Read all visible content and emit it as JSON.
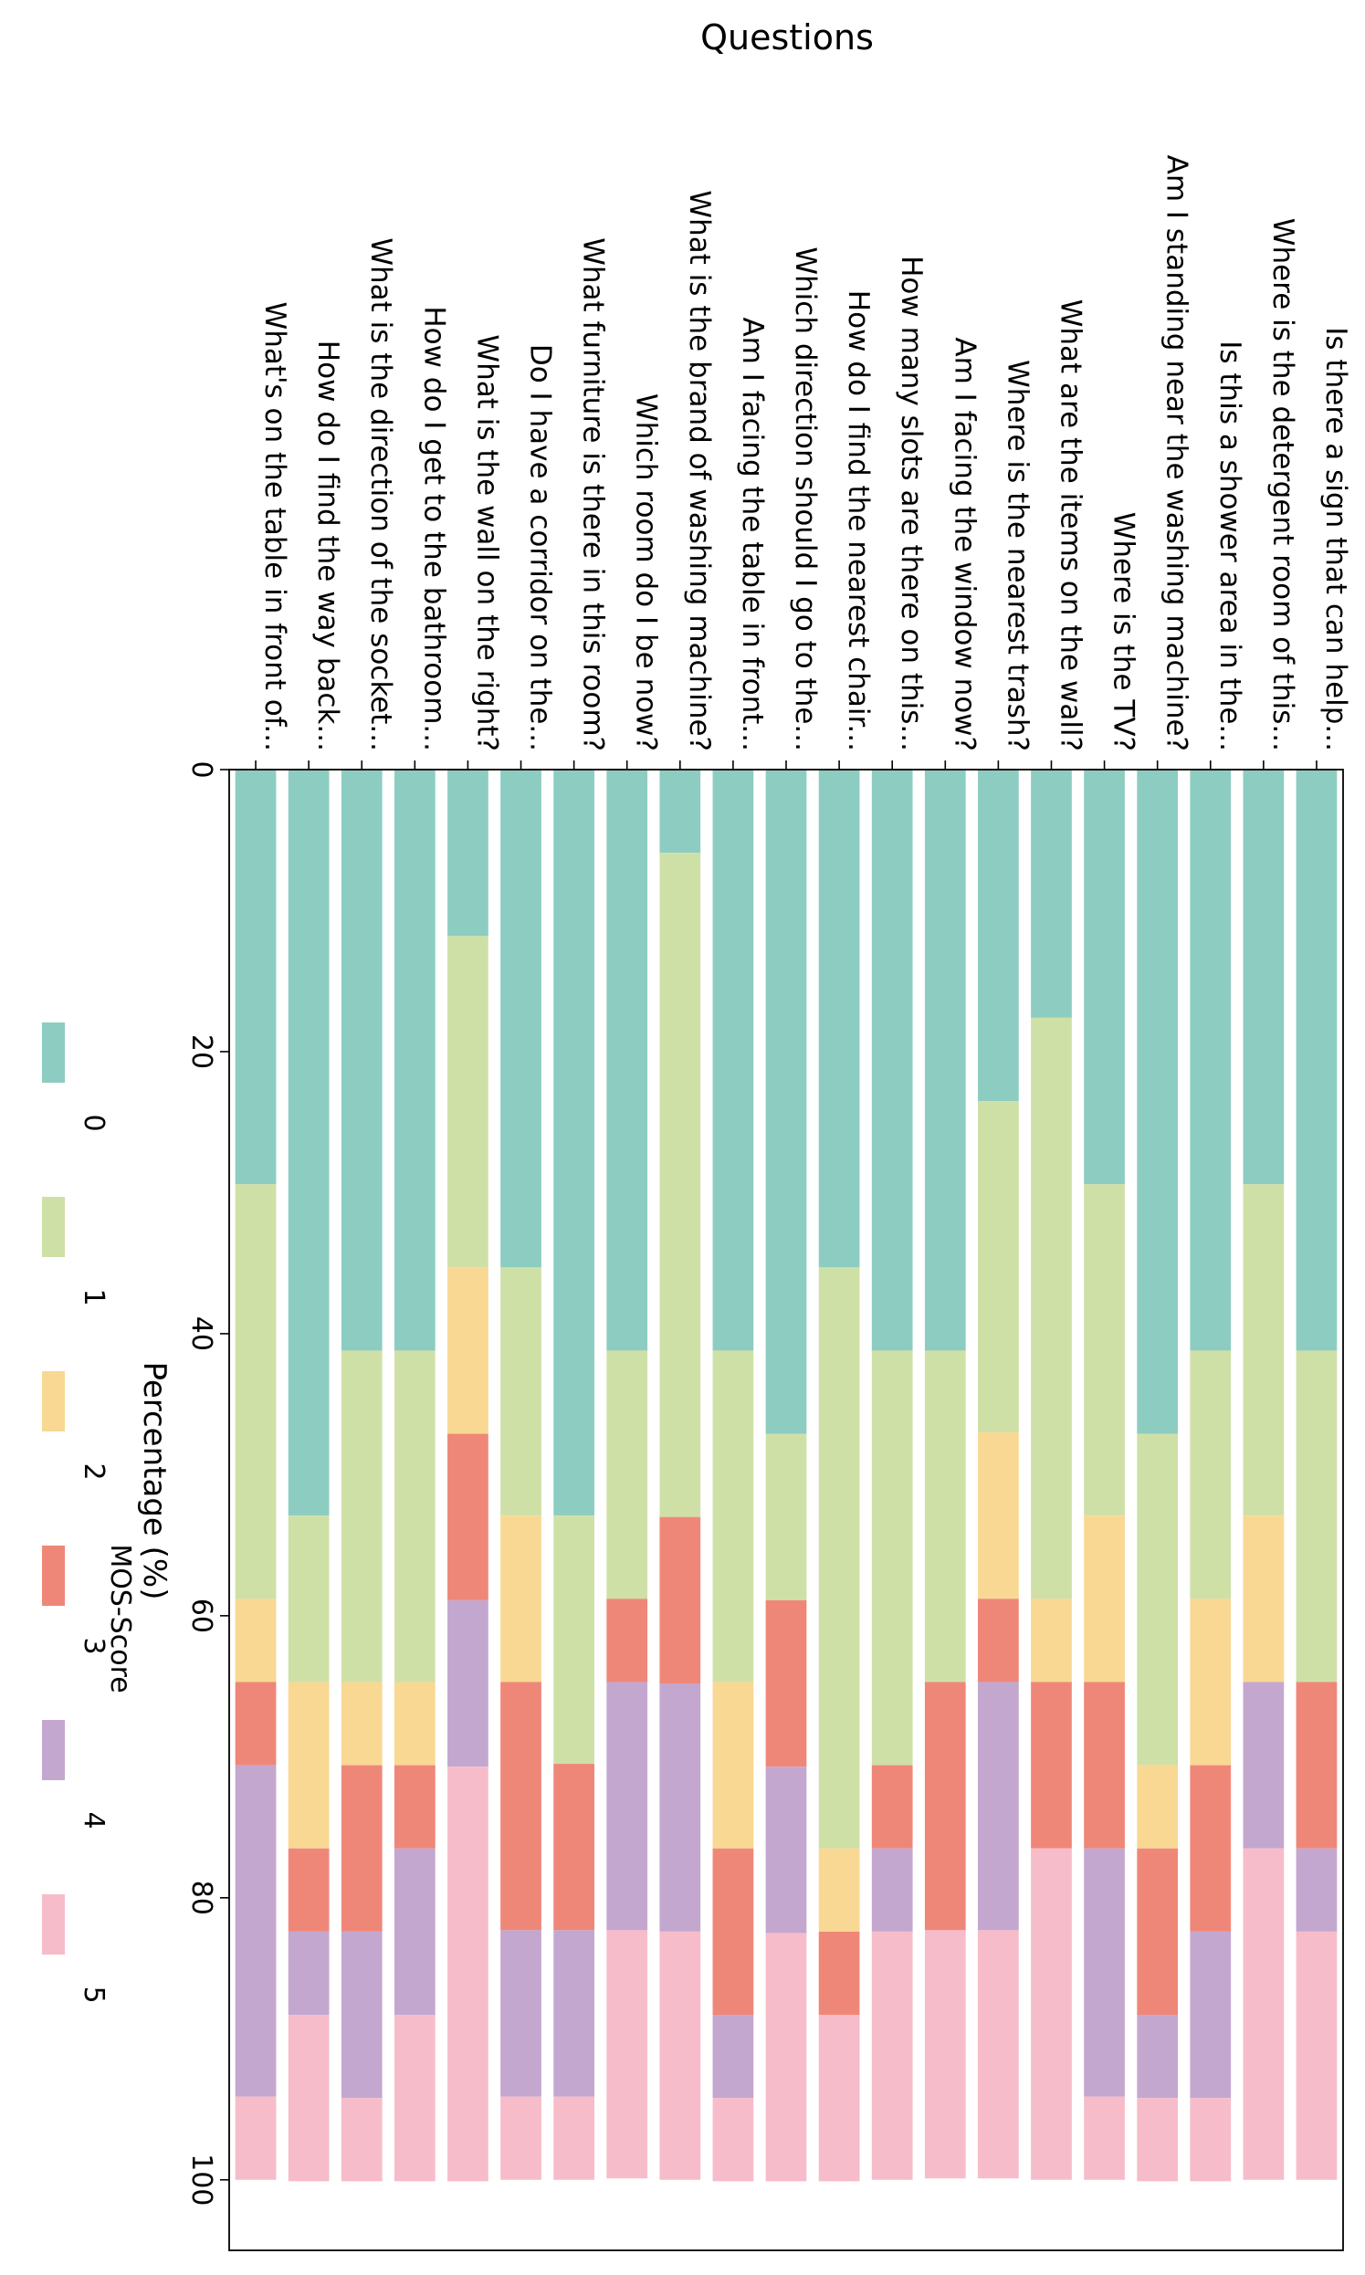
{
  "chart_data": {
    "type": "stacked_bar",
    "xlabel": "Questions",
    "ylabel": "Percentage (%)",
    "legend_title": "MOS-Score",
    "legend_position": "left",
    "categories": [
      "What's on the table in front of...",
      "How do I find the way back...",
      "What is the direction of the socket...",
      "How do I get to the bathroom...",
      "What is the wall on the right?",
      "Do I have a corridor on the...",
      "What furniture is there in this room?",
      "Which room do I be now?",
      "What is the brand of washing machine?",
      "Am I facing the table in front...",
      "Which direction should I go to the...",
      "How do I find the nearest chair...",
      "How many slots are there on this...",
      "Am I facing the window now?",
      "Where is the nearest trash?",
      "What are the items on the wall?",
      "Where is the TV?",
      "Am I standing near the washing machine?",
      "Is this a shower area in the...",
      "Where is the detergent room of this...",
      "Is there a sign that can help..."
    ],
    "series": [
      {
        "name": "0",
        "color": "#8dcdc1",
        "values": [
          29.4,
          52.9,
          41.2,
          41.2,
          11.8,
          35.3,
          52.9,
          41.2,
          5.9,
          41.2,
          47.1,
          35.3,
          41.2,
          41.2,
          23.5,
          17.6,
          29.4,
          47.1,
          41.2,
          29.4,
          41.2
        ]
      },
      {
        "name": "1",
        "color": "#cfe0a7",
        "values": [
          29.4,
          11.8,
          23.5,
          23.5,
          23.5,
          17.6,
          17.6,
          17.6,
          47.1,
          23.5,
          11.8,
          41.2,
          29.4,
          23.5,
          23.5,
          41.2,
          23.5,
          23.5,
          17.6,
          23.5,
          23.5
        ]
      },
      {
        "name": "2",
        "color": "#f8d893",
        "values": [
          5.9,
          11.8,
          5.9,
          5.9,
          11.8,
          11.8,
          0,
          0,
          0,
          11.8,
          0,
          5.9,
          0,
          0,
          11.8,
          5.9,
          11.8,
          5.9,
          11.8,
          11.8,
          0
        ]
      },
      {
        "name": "3",
        "color": "#ef8778",
        "values": [
          5.9,
          5.9,
          11.8,
          5.9,
          11.8,
          17.6,
          11.8,
          5.9,
          11.8,
          11.8,
          11.8,
          5.9,
          5.9,
          17.6,
          5.9,
          11.8,
          11.8,
          11.8,
          11.8,
          0,
          11.8
        ]
      },
      {
        "name": "4",
        "color": "#c4a7cf",
        "values": [
          23.5,
          5.9,
          11.8,
          11.8,
          11.8,
          11.8,
          11.8,
          17.6,
          17.6,
          5.9,
          11.8,
          0,
          5.9,
          0,
          17.6,
          0,
          17.6,
          5.9,
          11.8,
          11.8,
          5.9
        ]
      },
      {
        "name": "5",
        "color": "#f7bcca",
        "values": [
          5.9,
          11.8,
          5.9,
          11.8,
          29.4,
          5.9,
          5.9,
          17.6,
          17.6,
          5.9,
          17.6,
          11.8,
          17.6,
          17.6,
          17.6,
          23.5,
          5.9,
          5.9,
          5.9,
          23.5,
          17.6
        ]
      }
    ],
    "ylim": [
      0,
      105
    ],
    "yticks": [
      0,
      20,
      40,
      60,
      80,
      100
    ],
    "grid": false
  }
}
